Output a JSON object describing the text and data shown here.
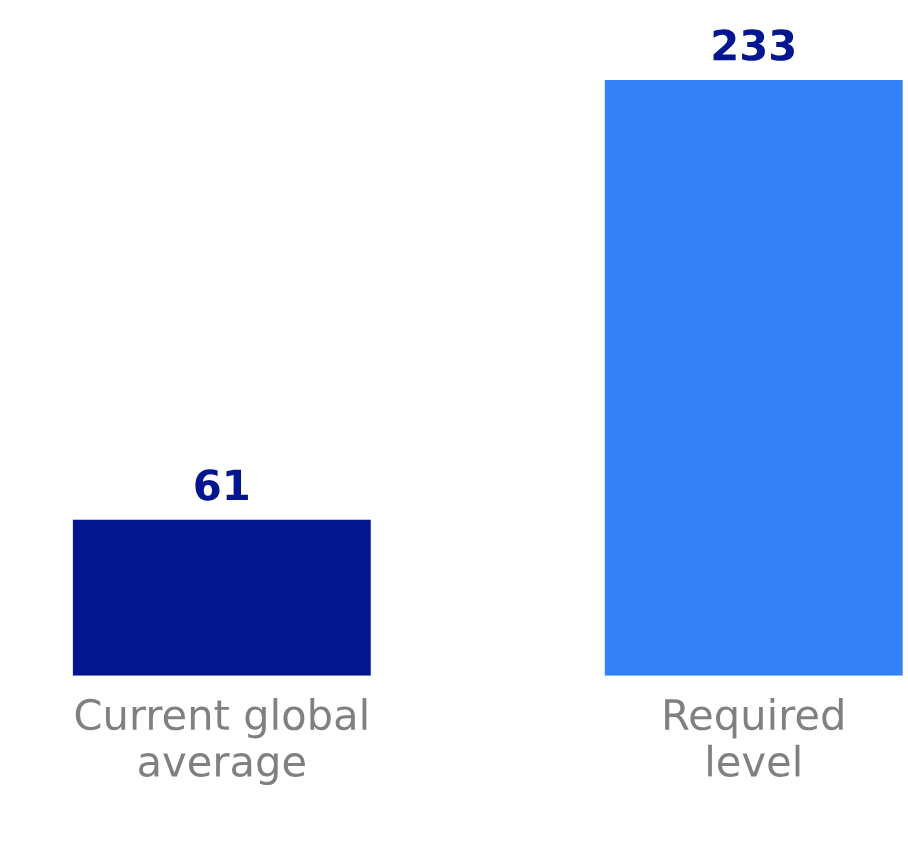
{
  "chart_data": {
    "type": "bar",
    "categories": [
      "Current global\naverage",
      "Required\nlevel"
    ],
    "values": [
      61,
      233
    ],
    "colors": [
      "#03168f",
      "#3580f5"
    ],
    "data_labels": true,
    "grid": false,
    "legend": false
  }
}
